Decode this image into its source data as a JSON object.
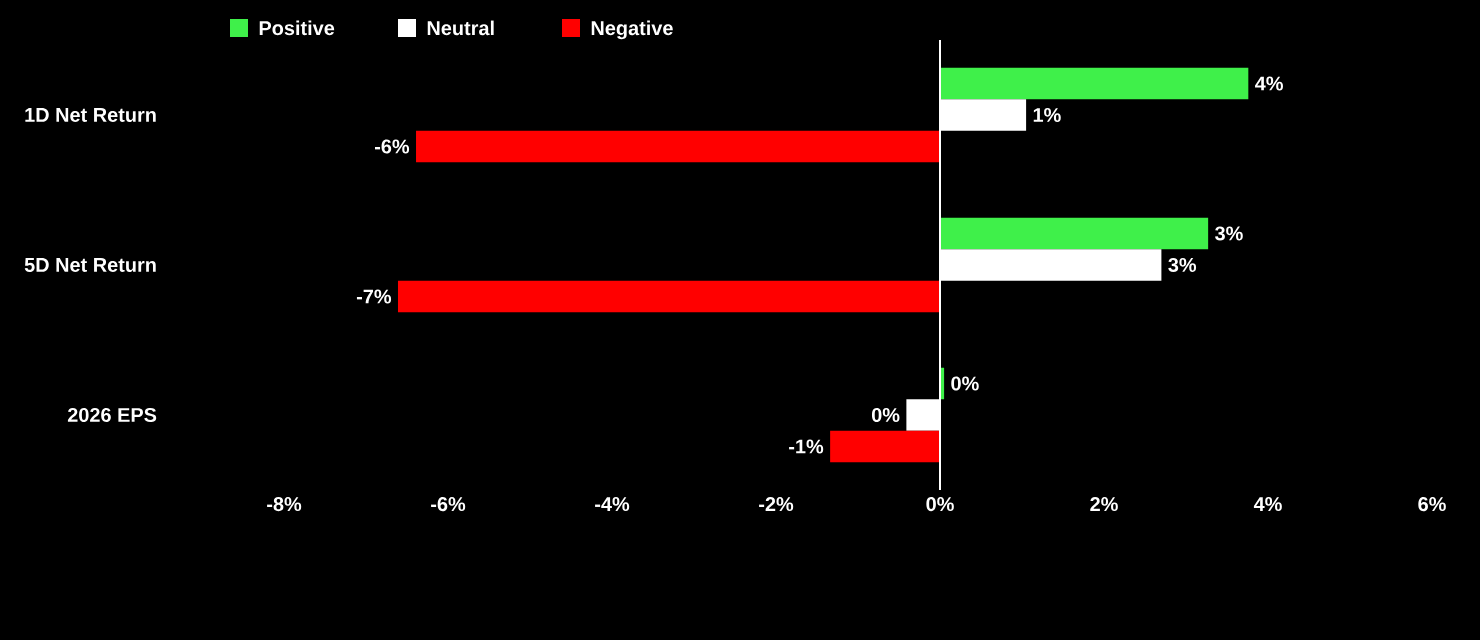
{
  "chart_data": {
    "type": "bar",
    "orientation": "horizontal",
    "categories": [
      "1D Net Return",
      "5D Net Return",
      "2026 EPS"
    ],
    "series": [
      {
        "name": "Positive",
        "color": "#3ff04a",
        "values": [
          3.76,
          3.27,
          0.05
        ],
        "value_labels": [
          "4%",
          "3%",
          "0%"
        ]
      },
      {
        "name": "Neutral",
        "color": "#ffffff",
        "values": [
          1.05,
          2.7,
          -0.41
        ],
        "value_labels": [
          "1%",
          "3%",
          "0%"
        ]
      },
      {
        "name": "Negative",
        "color": "#ff0000",
        "values": [
          -6.39,
          -6.61,
          -1.34
        ],
        "value_labels": [
          "-6%",
          "-7%",
          "-1%"
        ]
      }
    ],
    "xlim": [
      -8,
      6
    ],
    "xticks": [
      {
        "value": -8,
        "label": "-8%"
      },
      {
        "value": -6,
        "label": "-6%"
      },
      {
        "value": -4,
        "label": "-4%"
      },
      {
        "value": -2,
        "label": "-2%"
      },
      {
        "value": 0,
        "label": "0%"
      },
      {
        "value": 2,
        "label": "2%"
      },
      {
        "value": 4,
        "label": "4%"
      },
      {
        "value": 6,
        "label": "6%"
      }
    ],
    "ref_lines": [
      {
        "axis": "x",
        "value": 0,
        "color": "#ffffff"
      }
    ],
    "legend": "top"
  }
}
